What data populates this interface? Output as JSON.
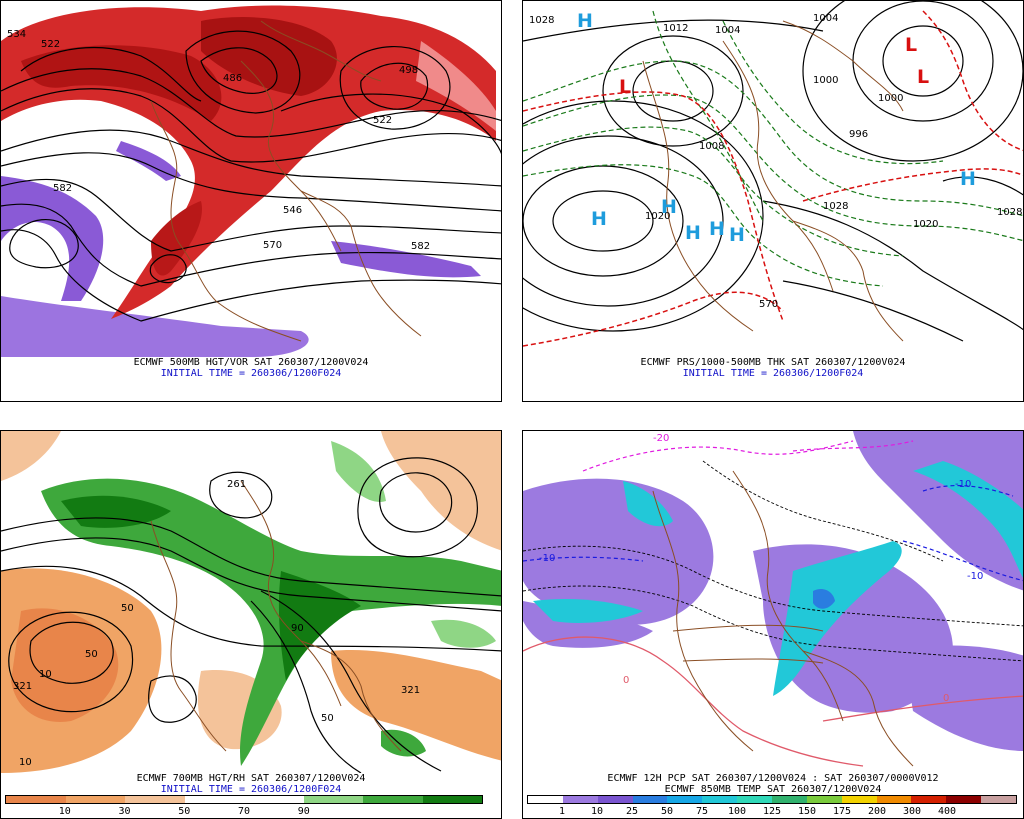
{
  "panels": {
    "p500": {
      "title": "ECMWF 500MB HGT/VOR SAT 260307/1200V024",
      "init": "INITIAL TIME = 260306/1200F024",
      "contour_labels": [
        "534",
        "522",
        "486",
        "498",
        "522",
        "582",
        "570",
        "582",
        "546"
      ]
    },
    "pmslp": {
      "title": "ECMWF PRS/1000-500MB THK SAT 260307/1200V024",
      "init": "INITIAL TIME = 260306/1200F024",
      "isobar_labels": [
        "1028",
        "1012",
        "1004",
        "1004",
        "1000",
        "1000",
        "996",
        "1020",
        "1028",
        "1020",
        "1028",
        "1008",
        "570"
      ],
      "highs": [
        "H",
        "H",
        "H",
        "H",
        "H",
        "H",
        "H"
      ],
      "lows": [
        "L",
        "L",
        "L"
      ]
    },
    "p700": {
      "title": "ECMWF 700MB HGT/RH SAT 260307/1200V024",
      "init": "INITIAL TIME = 260306/1200F024",
      "contour_labels": [
        "261",
        "321",
        "321",
        "50",
        "10",
        "50",
        "10",
        "50",
        "90"
      ],
      "colorbar": {
        "colors": [
          "#e8854a",
          "#f0a465",
          "#f4c39a",
          "#ffffff",
          "#ffffff",
          "#8fd685",
          "#3ea83c",
          "#127b12"
        ],
        "ticks": [
          "10",
          "30",
          "50",
          "70",
          "90"
        ]
      }
    },
    "pcp": {
      "title": "ECMWF 12H PCP SAT 260307/1200V024 : SAT 260307/0000V012",
      "title2": "ECMWF 850MB TEMP SAT 260307/1200V024",
      "temp_labels": [
        "-20",
        "-10",
        "-10",
        "-10",
        "0",
        "0"
      ],
      "colorbar": {
        "colors": [
          "#ffffff",
          "#9c7ae0",
          "#7a55d0",
          "#2a7de0",
          "#17a7e6",
          "#22c8d8",
          "#30d8b8",
          "#31b26e",
          "#7acb3c",
          "#f2d200",
          "#f08a00",
          "#d42000",
          "#8c0000",
          "#c8a0a0"
        ],
        "ticks": [
          "1",
          "10",
          "25",
          "50",
          "75",
          "100",
          "125",
          "150",
          "175",
          "200",
          "300",
          "400"
        ]
      }
    }
  },
  "colors": {
    "vorticity_red": "#c81818",
    "vorticity_purple": "#8a5ad6",
    "thickness_green": "#1a7a1a",
    "thickness_red": "#d81010",
    "rh_green": "#2e9a2e",
    "rh_orange": "#e8854a",
    "coast_brown": "#8a4e24",
    "high_blue": "#1e9cdc"
  }
}
